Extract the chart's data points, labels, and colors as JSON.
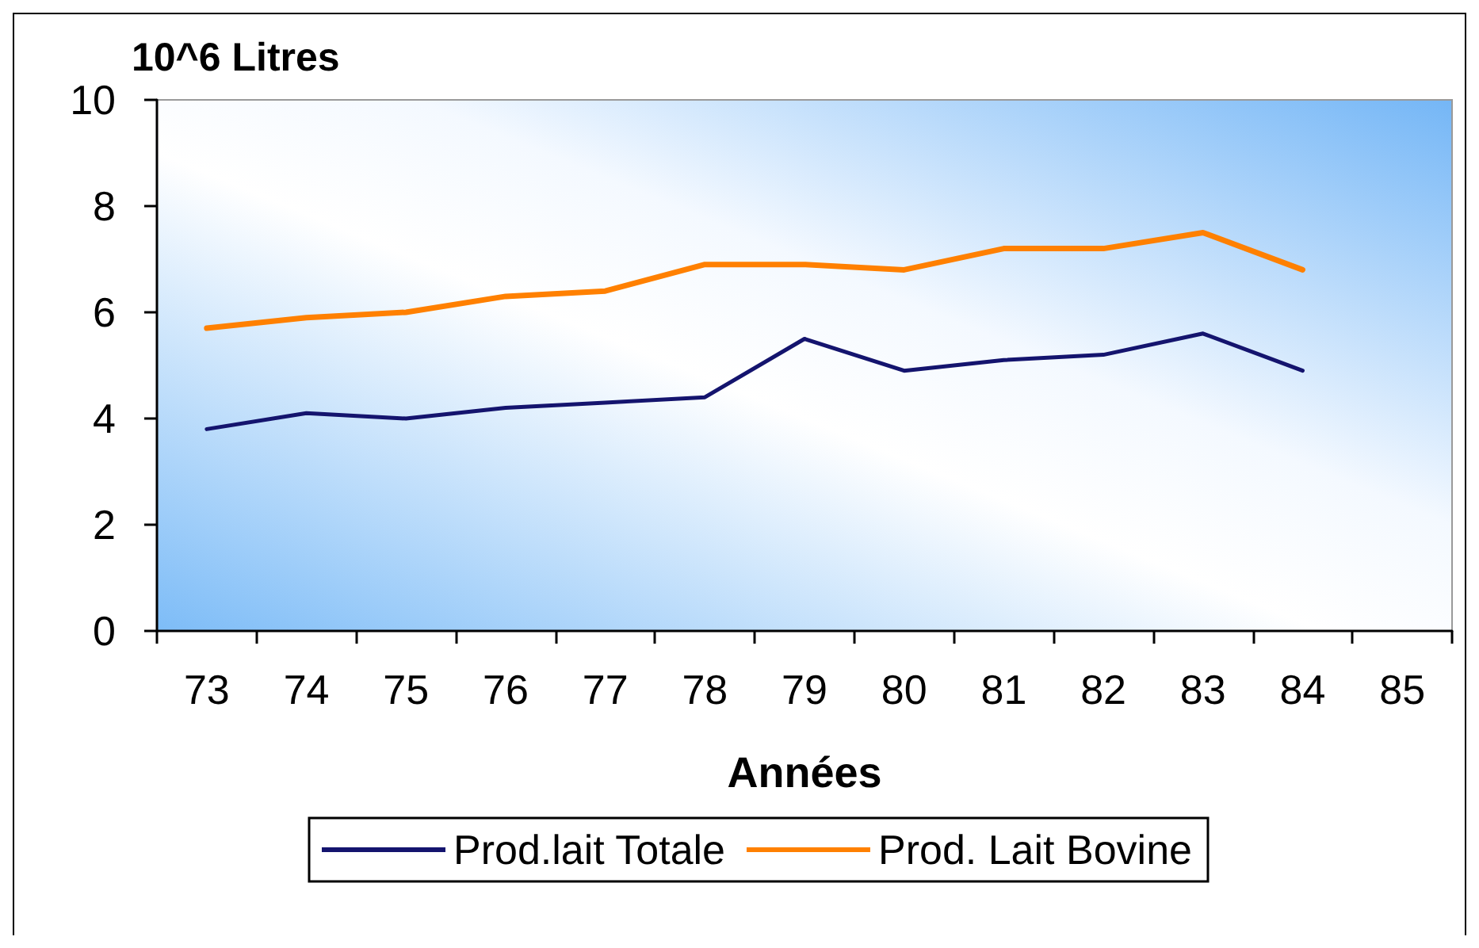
{
  "chart_data": {
    "type": "line",
    "ylabel": "10^6 Litres",
    "xlabel": "Années",
    "categories": [
      "73",
      "74",
      "75",
      "76",
      "77",
      "78",
      "79",
      "80",
      "81",
      "82",
      "83",
      "84",
      "85"
    ],
    "series": [
      {
        "name": "Prod.lait Totale",
        "color": "#14146e",
        "values": [
          3.8,
          4.1,
          4.0,
          4.2,
          4.3,
          4.4,
          5.5,
          4.9,
          5.1,
          5.2,
          5.6,
          4.9,
          null
        ]
      },
      {
        "name": "Prod. Lait Bovine",
        "color": "#ff8000",
        "values": [
          5.7,
          5.9,
          6.0,
          6.3,
          6.4,
          6.9,
          6.9,
          6.8,
          7.2,
          7.2,
          7.5,
          6.8,
          null
        ]
      }
    ],
    "ylim": [
      0,
      10
    ],
    "yticks": [
      0,
      2,
      4,
      6,
      8,
      10
    ],
    "grid": false,
    "legend": "bottom",
    "marker": "none"
  }
}
